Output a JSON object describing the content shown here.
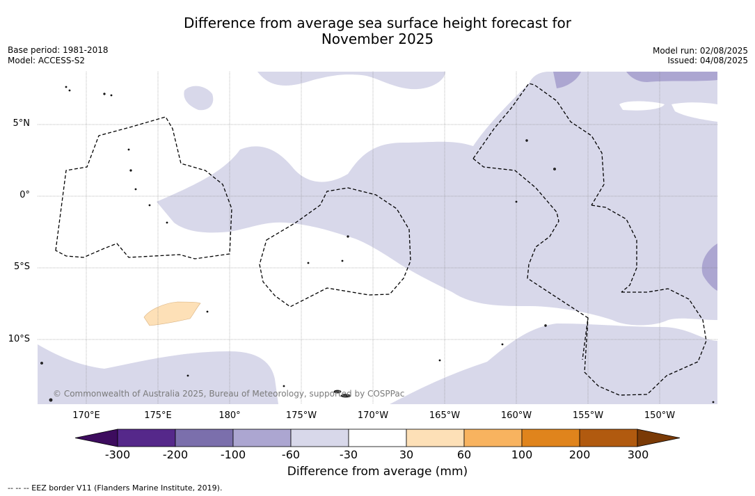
{
  "title_line1": "Difference from average sea surface height forecast for",
  "title_line2": "November 2025",
  "base_period": "Base period: 1981-2018",
  "model": "Model: ACCESS-S2",
  "model_run": "Model run: 02/08/2025",
  "issued": "Issued: 04/08/2025",
  "lat_labels": [
    "5°N",
    "0°",
    "5°S",
    "10°S"
  ],
  "lon_labels": [
    "170°E",
    "175°E",
    "180°",
    "175°W",
    "170°W",
    "165°W",
    "160°W",
    "155°W",
    "150°W"
  ],
  "copyright": "© Commonwealth of Australia 2025, Bureau of Meteorology, supported by COSPPac",
  "colorbar": {
    "ticks": [
      "-300",
      "-200",
      "-100",
      "-60",
      "-30",
      "30",
      "60",
      "100",
      "200",
      "300"
    ],
    "colors": [
      "#3d0c5e",
      "#55288a",
      "#7b6fac",
      "#aca6d1",
      "#d8d8ea",
      "#ffffff",
      "#fde0b7",
      "#f8b35f",
      "#e0841c",
      "#b15a0f",
      "#7a3a06"
    ],
    "title": "Difference from average (mm)"
  },
  "footnote": "--  --  -- EEZ border V11 (Flanders Marine Institute, 2019).",
  "colors": {
    "light_band": "#d8d8ea",
    "mid_band": "#aca6d1",
    "orange_light": "#fde0b7"
  }
}
